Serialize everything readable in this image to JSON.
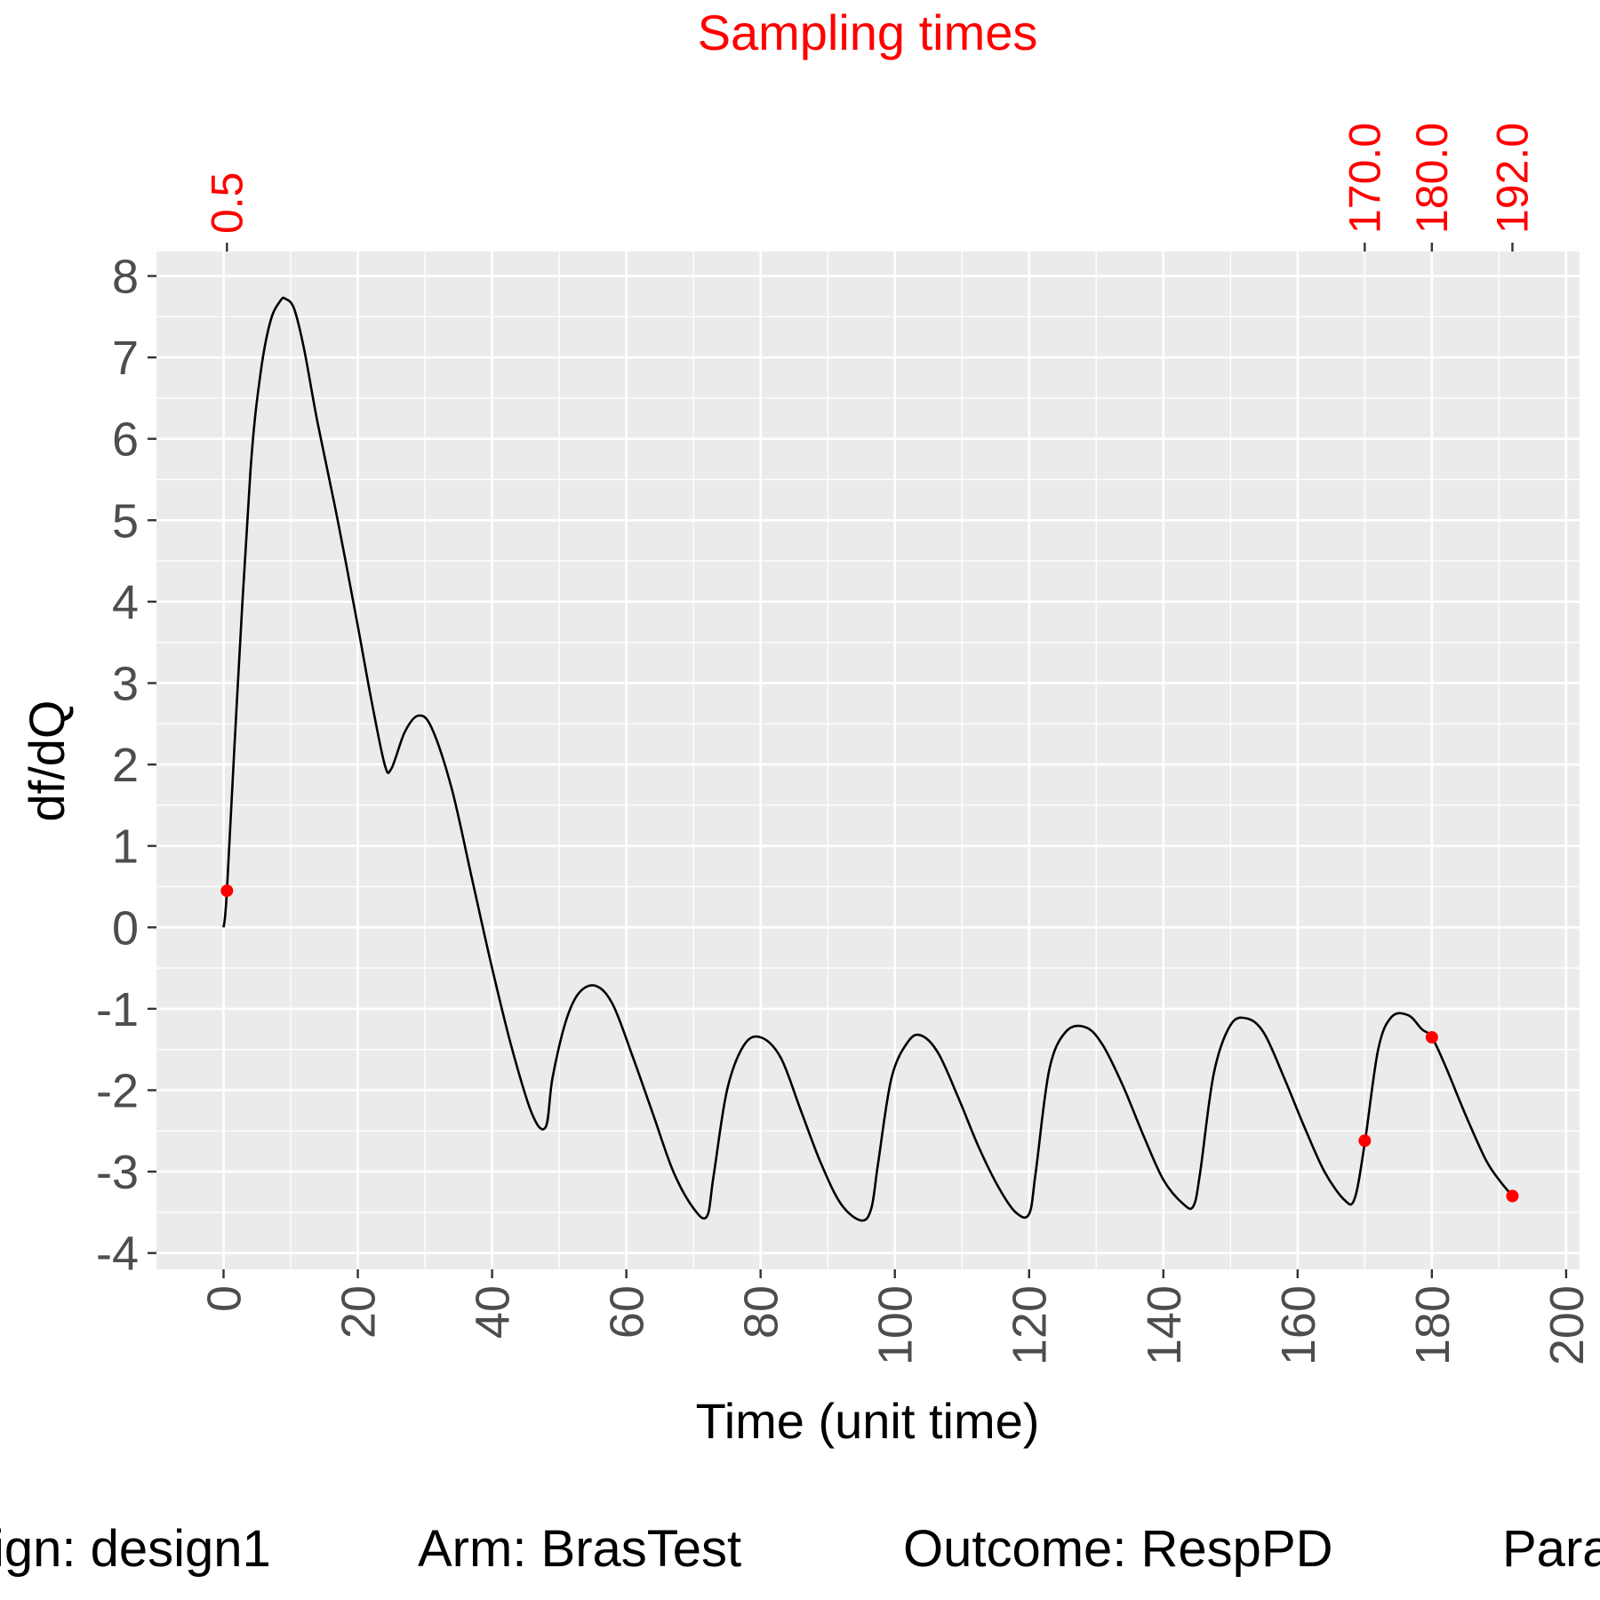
{
  "chart_data": {
    "type": "line",
    "xlabel": "Time (unit time)",
    "ylabel": "df/dQ",
    "xlim": [
      -10,
      202
    ],
    "ylim": [
      -4.2,
      8.3
    ],
    "x_ticks": [
      0,
      20,
      40,
      60,
      80,
      100,
      120,
      140,
      160,
      180,
      200
    ],
    "y_ticks": [
      -4,
      -3,
      -2,
      -1,
      0,
      1,
      2,
      3,
      4,
      5,
      6,
      7,
      8
    ],
    "grid": true,
    "sampling_axis": {
      "title": "Sampling times",
      "ticks": [
        0.5,
        170.0,
        180.0,
        192.0
      ],
      "tick_labels": [
        "0.5",
        "170.0",
        "180.0",
        "192.0"
      ],
      "color": "#ff0000"
    },
    "series": [
      {
        "color": "#000000",
        "x": [
          0,
          0.5,
          2,
          4,
          5.5,
          7,
          8.5,
          9.2,
          10.5,
          12,
          14,
          17,
          20,
          22,
          24,
          25,
          27,
          29,
          31,
          34,
          37,
          40,
          43,
          46,
          48,
          49,
          51,
          53,
          55.5,
          58,
          61,
          64,
          67,
          70,
          72,
          73,
          75,
          77.5,
          80,
          83,
          86,
          89,
          92,
          95,
          96.5,
          97.5,
          99.5,
          102,
          104,
          106.5,
          109.5,
          112.5,
          115.5,
          118,
          120,
          121,
          123,
          125.5,
          128.5,
          131,
          134,
          137,
          140,
          143,
          144.5,
          145.5,
          147.5,
          150,
          152.5,
          155,
          158,
          161,
          164,
          167,
          168.5,
          170,
          172,
          174,
          176.5,
          178.5,
          180,
          182,
          185,
          188,
          190,
          192
        ],
        "y": [
          0,
          0.45,
          2.8,
          5.6,
          6.8,
          7.45,
          7.7,
          7.72,
          7.6,
          7.1,
          6.2,
          5.0,
          3.7,
          2.8,
          2.0,
          1.95,
          2.4,
          2.6,
          2.45,
          1.7,
          0.6,
          -0.5,
          -1.5,
          -2.3,
          -2.45,
          -1.85,
          -1.15,
          -0.8,
          -0.72,
          -0.95,
          -1.6,
          -2.3,
          -3.0,
          -3.45,
          -3.55,
          -3.05,
          -2.0,
          -1.45,
          -1.35,
          -1.6,
          -2.25,
          -2.9,
          -3.4,
          -3.6,
          -3.45,
          -2.9,
          -1.85,
          -1.4,
          -1.33,
          -1.55,
          -2.1,
          -2.7,
          -3.2,
          -3.5,
          -3.52,
          -3.0,
          -1.75,
          -1.28,
          -1.23,
          -1.45,
          -1.95,
          -2.55,
          -3.1,
          -3.4,
          -3.42,
          -3.0,
          -1.8,
          -1.2,
          -1.12,
          -1.3,
          -1.85,
          -2.45,
          -3.0,
          -3.35,
          -3.33,
          -2.65,
          -1.5,
          -1.1,
          -1.08,
          -1.25,
          -1.35,
          -1.7,
          -2.3,
          -2.85,
          -3.1,
          -3.3
        ]
      }
    ],
    "sample_points": {
      "color": "#ff0000",
      "x": [
        0.5,
        170.0,
        180.0,
        192.0
      ],
      "y": [
        0.45,
        -2.62,
        -1.35,
        -3.3
      ]
    }
  },
  "caption": {
    "design": "ign: design1",
    "arm": "Arm: BrasTest",
    "outcome": "Outcome: RespPD",
    "parameter": "Para"
  }
}
